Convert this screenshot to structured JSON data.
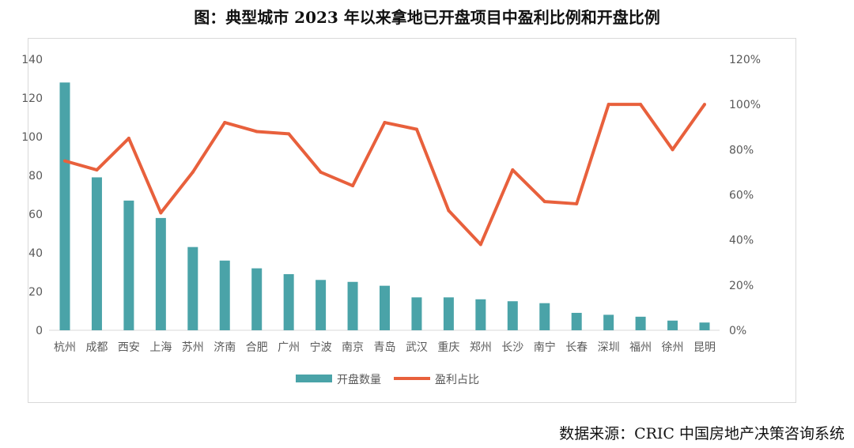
{
  "title": "图：典型城市 2023 年以来拿地已开盘项目中盈利比例和开盘比例",
  "source": "数据来源：CRIC 中国房地产决策咨询系统",
  "chart_data": {
    "type": "bar+line",
    "categories": [
      "杭州",
      "成都",
      "西安",
      "上海",
      "苏州",
      "济南",
      "合肥",
      "广州",
      "宁波",
      "南京",
      "青岛",
      "武汉",
      "重庆",
      "郑州",
      "长沙",
      "南宁",
      "长春",
      "深圳",
      "福州",
      "徐州",
      "昆明"
    ],
    "series": [
      {
        "name": "开盘数量",
        "type": "bar",
        "axis": "left",
        "color": "#4aa3a8",
        "values": [
          128,
          79,
          67,
          58,
          43,
          36,
          32,
          29,
          26,
          25,
          23,
          17,
          17,
          16,
          15,
          14,
          9,
          8,
          7,
          5,
          4
        ]
      },
      {
        "name": "盈利占比",
        "type": "line",
        "axis": "right",
        "color": "#e8603c",
        "values": [
          75,
          71,
          85,
          52,
          70,
          92,
          88,
          87,
          70,
          64,
          92,
          89,
          53,
          38,
          71,
          57,
          56,
          100,
          100,
          80,
          100
        ]
      }
    ],
    "yleft": {
      "lim": [
        0,
        140
      ],
      "ticks": [
        "0",
        "20",
        "40",
        "60",
        "80",
        "100",
        "120",
        "140"
      ]
    },
    "yright": {
      "lim": [
        0,
        120
      ],
      "ticks": [
        "0%",
        "20%",
        "40%",
        "60%",
        "80%",
        "100%",
        "120%"
      ]
    },
    "grid": false,
    "legend": "bottom"
  }
}
